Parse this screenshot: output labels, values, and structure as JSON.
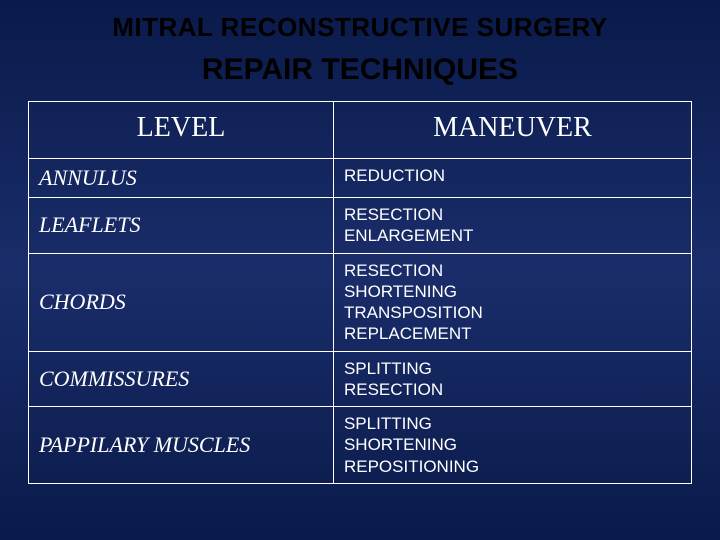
{
  "title": "MITRAL RECONSTRUCTIVE SURGERY",
  "subtitle": "REPAIR TECHNIQUES",
  "title_fontsize": 26,
  "subtitle_fontsize": 30,
  "background_gradient": [
    "#0a1a4a",
    "#1a2d6a",
    "#0a1a4a"
  ],
  "border_color": "#ffffff",
  "text_color": "#ffffff",
  "title_color": "#000000",
  "table": {
    "columns": [
      "LEVEL",
      "MANEUVER"
    ],
    "header_fontsize": 28,
    "level_fontsize": 22,
    "maneuver_fontsize": 17,
    "col_widths": [
      "46%",
      "54%"
    ],
    "rows": [
      {
        "level": "ANNULUS",
        "maneuvers": [
          "REDUCTION"
        ]
      },
      {
        "level": "LEAFLETS",
        "maneuvers": [
          "RESECTION",
          "ENLARGEMENT"
        ]
      },
      {
        "level": "CHORDS",
        "maneuvers": [
          "RESECTION",
          "SHORTENING",
          "TRANSPOSITION",
          "REPLACEMENT"
        ]
      },
      {
        "level": "COMMISSURES",
        "maneuvers": [
          "SPLITTING",
          "RESECTION"
        ]
      },
      {
        "level": "PAPPILARY   MUSCLES",
        "maneuvers": [
          "SPLITTING",
          "SHORTENING",
          "REPOSITIONING"
        ]
      }
    ]
  }
}
